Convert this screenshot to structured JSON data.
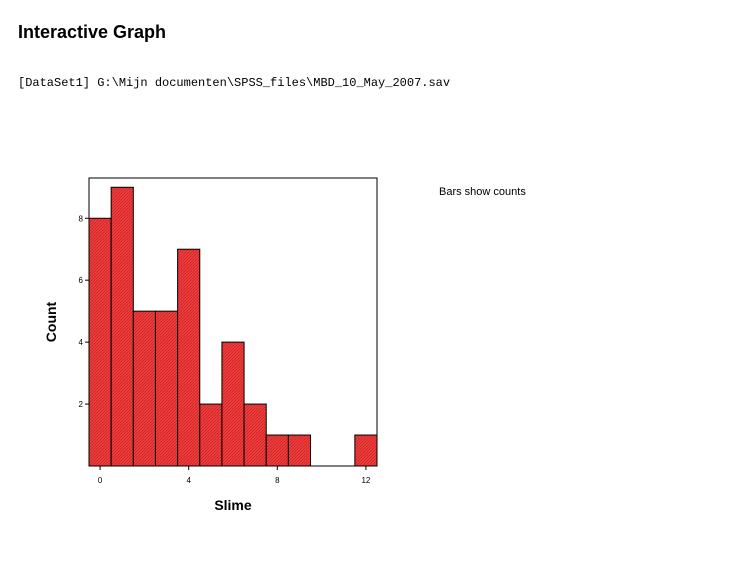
{
  "page": {
    "title": "Interactive Graph",
    "dataset": "[DataSet1] G:\\Mijn documenten\\SPSS_files\\MBD_10_May_2007.sav"
  },
  "chart_data": {
    "type": "bar",
    "subtype": "histogram",
    "note": "Bars show counts",
    "xlabel": "Slime",
    "ylabel": "Count",
    "xlim": [
      -0.5,
      12.5
    ],
    "ylim": [
      0,
      9.3
    ],
    "x_ticks": [
      0,
      4,
      8,
      12
    ],
    "y_ticks": [
      2,
      4,
      6,
      8
    ],
    "bins": [
      {
        "x0": -0.5,
        "x1": 0.5,
        "count": 8
      },
      {
        "x0": 0.5,
        "x1": 1.5,
        "count": 9
      },
      {
        "x0": 1.5,
        "x1": 2.5,
        "count": 5
      },
      {
        "x0": 2.5,
        "x1": 3.5,
        "count": 5
      },
      {
        "x0": 3.5,
        "x1": 4.5,
        "count": 7
      },
      {
        "x0": 4.5,
        "x1": 5.5,
        "count": 2
      },
      {
        "x0": 5.5,
        "x1": 6.5,
        "count": 4
      },
      {
        "x0": 6.5,
        "x1": 7.5,
        "count": 2
      },
      {
        "x0": 7.5,
        "x1": 8.5,
        "count": 1
      },
      {
        "x0": 8.5,
        "x1": 9.5,
        "count": 1
      },
      {
        "x0": 9.5,
        "x1": 10.5,
        "count": 0
      },
      {
        "x0": 10.5,
        "x1": 11.5,
        "count": 0
      },
      {
        "x0": 11.5,
        "x1": 12.5,
        "count": 1
      }
    ],
    "bar_color": "#f03c3c",
    "bar_edge_color": "#000000",
    "grid": false,
    "legend": "none"
  }
}
